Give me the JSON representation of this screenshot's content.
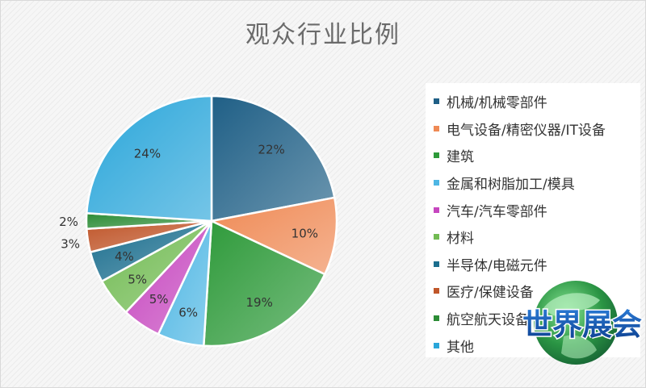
{
  "chart_data": {
    "type": "pie",
    "title": "观众行业比例",
    "legend_position": "right",
    "slices": [
      {
        "label": "机械/机械零部件",
        "value": 22,
        "display": "22%",
        "color": "#1f5f86"
      },
      {
        "label": "电气设备/精密仪器/IT设备",
        "value": 10,
        "display": "10%",
        "color": "#ef8a55"
      },
      {
        "label": "建筑",
        "value": 19,
        "display": "19%",
        "color": "#2e9a3a"
      },
      {
        "label": "金属和树脂加工/模具",
        "value": 6,
        "display": "6%",
        "color": "#4eb6e4"
      },
      {
        "label": "汽车/汽车零部件",
        "value": 5,
        "display": "5%",
        "color": "#c646bf"
      },
      {
        "label": "材料",
        "value": 5,
        "display": "5%",
        "color": "#72bb53"
      },
      {
        "label": "半导体/电磁元件",
        "value": 4,
        "display": "4%",
        "color": "#1b6e8e"
      },
      {
        "label": "医疗/保健设备",
        "value": 3,
        "display": "3%",
        "color": "#c0562a"
      },
      {
        "label": "航空航天设备",
        "value": 2,
        "display": "2%",
        "color": "#2c8c36"
      },
      {
        "label": "其他",
        "value": 24,
        "display": "24%",
        "color": "#2aa6da"
      }
    ]
  },
  "watermark": {
    "text": "世界展会"
  }
}
